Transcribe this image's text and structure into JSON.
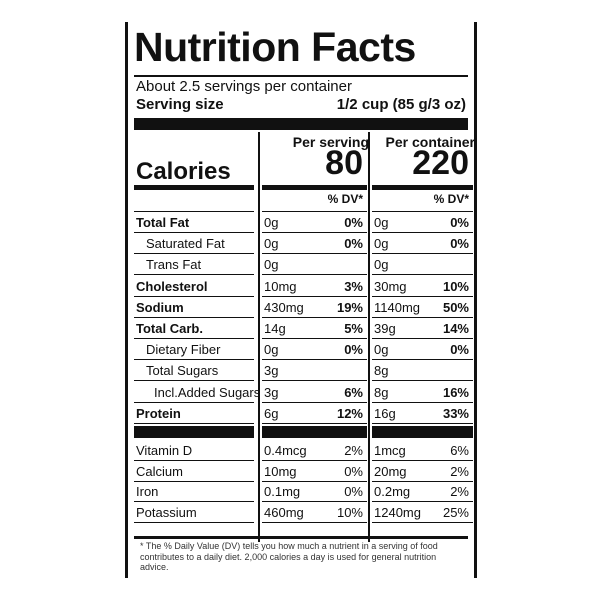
{
  "title": "Nutrition Facts",
  "servings": "About 2.5 servings per container",
  "serving_size": {
    "label": "Serving size",
    "value": "1/2 cup (85 g/3 oz)"
  },
  "calories_label": "Calories",
  "columns": [
    {
      "header": "Per serving",
      "calories": "80",
      "dv": "% DV*"
    },
    {
      "header": "Per container",
      "calories": "220",
      "dv": "% DV*"
    }
  ],
  "nutrients": [
    {
      "label": "Total Fat",
      "serving": [
        "0g",
        "0%"
      ],
      "container": [
        "0g",
        "0%"
      ]
    },
    {
      "label": "Saturated Fat",
      "serving": [
        "0g",
        "0%"
      ],
      "container": [
        "0g",
        "0%"
      ]
    },
    {
      "label": "Trans Fat",
      "serving": [
        "0g"
      ],
      "container": [
        "0g"
      ]
    },
    {
      "label": "Cholesterol",
      "serving": [
        "10mg",
        "3%"
      ],
      "container": [
        "30mg",
        "10%"
      ]
    },
    {
      "label": "Sodium",
      "serving": [
        "430mg",
        "19%"
      ],
      "container": [
        "1140mg",
        "50%"
      ]
    },
    {
      "label": "Total Carb.",
      "serving": [
        "14g",
        "5%"
      ],
      "container": [
        "39g",
        "14%"
      ]
    },
    {
      "label": "Dietary Fiber",
      "serving": [
        "0g",
        "0%"
      ],
      "container": [
        "0g",
        "0%"
      ]
    },
    {
      "label": "Total Sugars",
      "serving": [
        "3g"
      ],
      "container": [
        "8g"
      ]
    },
    {
      "label": "Incl.Added Sugars",
      "serving": [
        "3g",
        "6%"
      ],
      "container": [
        "8g",
        "16%"
      ]
    },
    {
      "label": "Protein",
      "serving": [
        "6g",
        "12%"
      ],
      "container": [
        "16g",
        "33%"
      ]
    }
  ],
  "vitamins": [
    {
      "label": "Vitamin D",
      "serving": [
        "0.4mcg",
        "2%"
      ],
      "container": [
        "1mcg",
        "6%"
      ]
    },
    {
      "label": "Calcium",
      "serving": [
        "10mg",
        "0%"
      ],
      "container": [
        "20mg",
        "2%"
      ]
    },
    {
      "label": "Iron",
      "serving": [
        "0.1mg",
        "0%"
      ],
      "container": [
        "0.2mg",
        "2%"
      ]
    },
    {
      "label": "Potassium",
      "serving": [
        "460mg",
        "10%"
      ],
      "container": [
        "1240mg",
        "25%"
      ]
    }
  ],
  "footnote": "* The % Daily Value (DV) tells you how much a nutrient in a serving of food contributes to a daily diet. 2,000 calories a day is used for general nutrition advice."
}
